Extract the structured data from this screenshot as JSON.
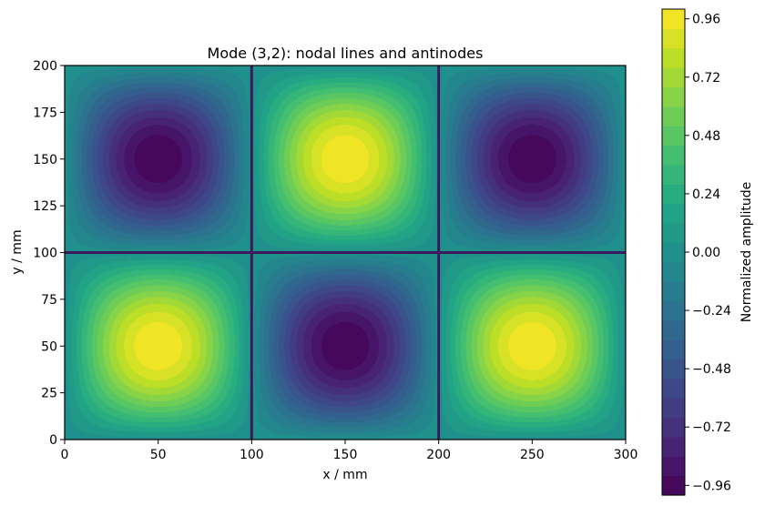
{
  "chart_data": {
    "type": "heatmap",
    "title": "Mode (3,2): nodal lines and antinodes",
    "xlabel": "x / mm",
    "ylabel": "y / mm",
    "xlim": [
      0,
      300
    ],
    "ylim": [
      0,
      200
    ],
    "xticks": [
      "0",
      "50",
      "100",
      "150",
      "200",
      "250",
      "300"
    ],
    "yticks": [
      "0",
      "25",
      "50",
      "75",
      "100",
      "125",
      "150",
      "175",
      "200"
    ],
    "mode": {
      "m": 3,
      "n": 2
    },
    "field": "sin(3*pi*x/300) * sin(2*pi*y/200)",
    "contour_levels": 25,
    "nodal_lines": {
      "x": [
        100,
        200
      ],
      "y": [
        100
      ]
    },
    "antinodes": [
      {
        "x": 50,
        "y": 50,
        "value": 1.0
      },
      {
        "x": 150,
        "y": 50,
        "value": -1.0
      },
      {
        "x": 250,
        "y": 50,
        "value": 1.0
      },
      {
        "x": 50,
        "y": 150,
        "value": -1.0
      },
      {
        "x": 150,
        "y": 150,
        "value": 1.0
      },
      {
        "x": 250,
        "y": 150,
        "value": -1.0
      }
    ],
    "colorbar": {
      "label": "Normalized amplitude",
      "range": [
        -1.0,
        1.0
      ],
      "ticks": [
        "0.96",
        "0.72",
        "0.48",
        "0.24",
        "0.00",
        "−0.24",
        "−0.48",
        "−0.72",
        "−0.96"
      ],
      "tick_values": [
        0.96,
        0.72,
        0.48,
        0.24,
        0.0,
        -0.24,
        -0.48,
        -0.72,
        -0.96
      ],
      "colormap": "viridis"
    },
    "grid": false,
    "colors": {
      "nodal_line": "#3b1a5c",
      "viridis_low": "#440154",
      "viridis_mid": "#21918c",
      "viridis_high": "#fde725"
    }
  }
}
